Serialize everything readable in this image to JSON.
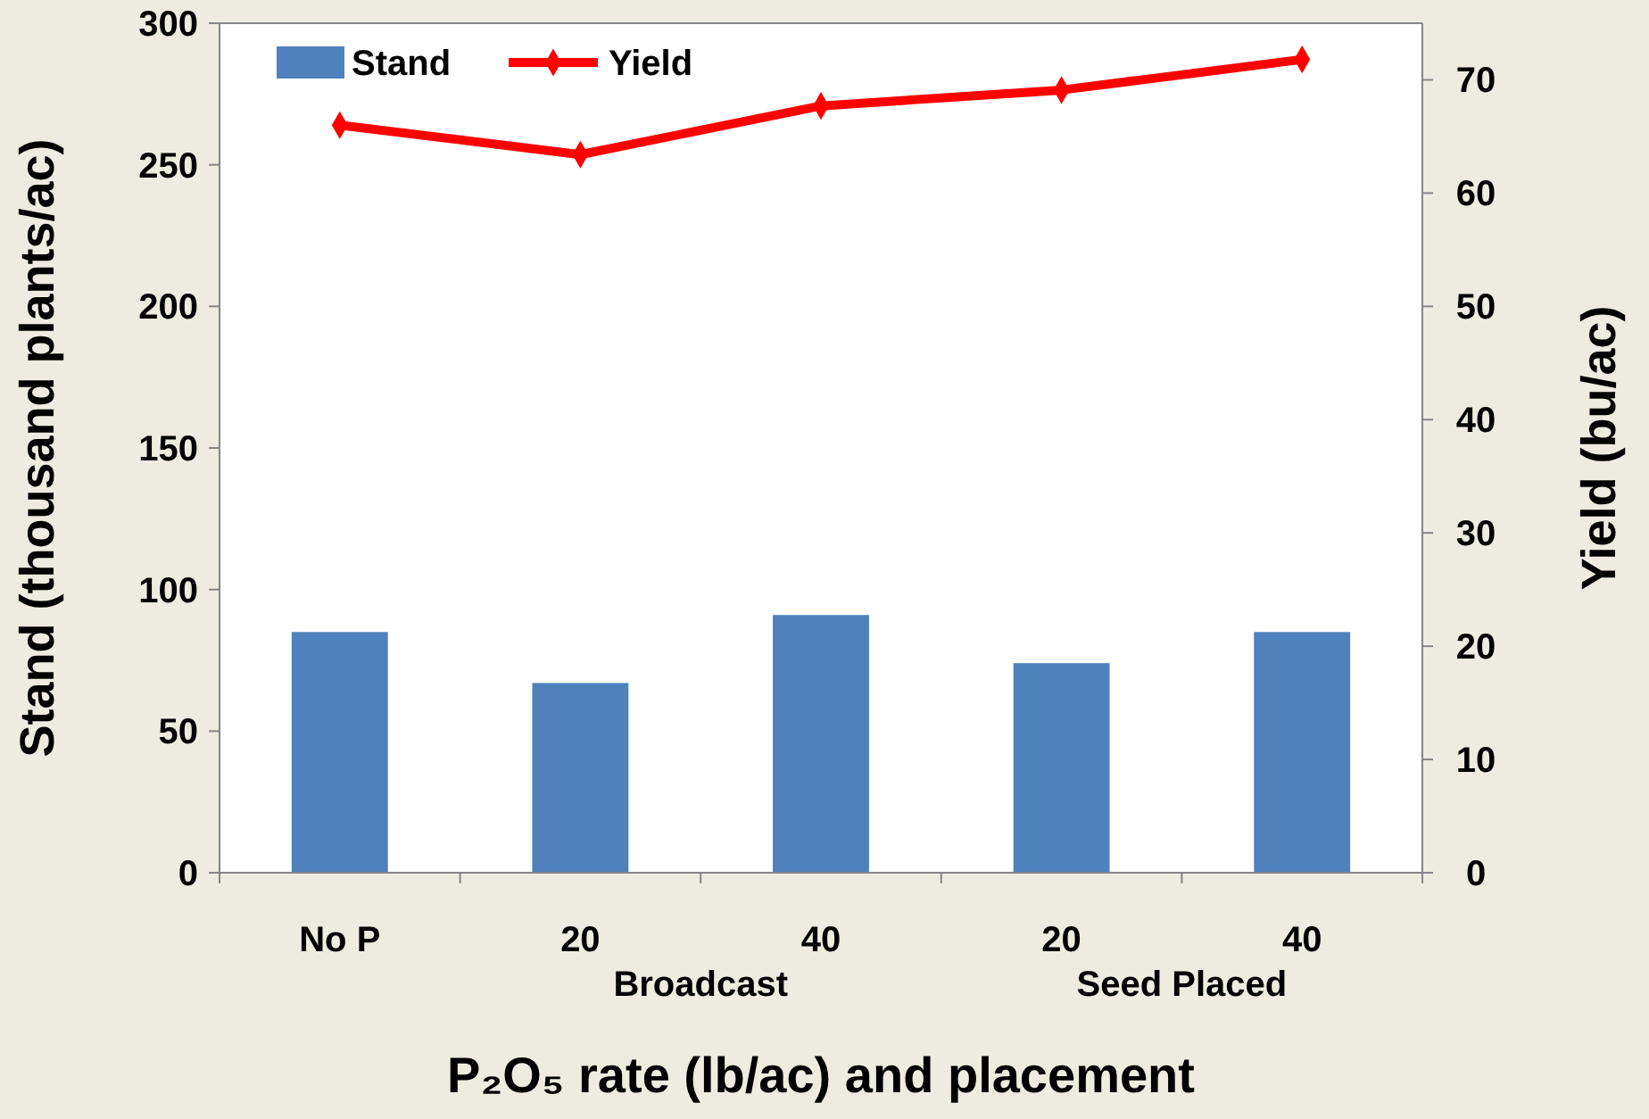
{
  "chart_data": {
    "type": "bar",
    "xlabel": "P₂O₅ rate (lb/ac) and placement",
    "ylabel": "Stand (thousand plants/ac)",
    "y2label": "Yield (bu/ac)",
    "categories": [
      "No P",
      "20",
      "40",
      "20",
      "40"
    ],
    "series": [
      {
        "name": "Stand",
        "color": "#4f81bd",
        "values": [
          85,
          67,
          91,
          74,
          85
        ]
      },
      {
        "name": "Yield",
        "type": "line",
        "axis": "y2",
        "color": "#ff0000",
        "marker": "diamond",
        "values": [
          66,
          63.4,
          67.7,
          69.1,
          71.8
        ]
      }
    ],
    "ylim": [
      0,
      300
    ],
    "yticks": [
      0,
      50,
      100,
      150,
      200,
      250,
      300
    ],
    "y2lim": [
      0,
      75
    ],
    "y2ticks": [
      0,
      10,
      20,
      30,
      40,
      50,
      60,
      70
    ],
    "annotations": [
      "Broadcast",
      "Seed Placed"
    ],
    "legend": "top left",
    "grid": false
  }
}
